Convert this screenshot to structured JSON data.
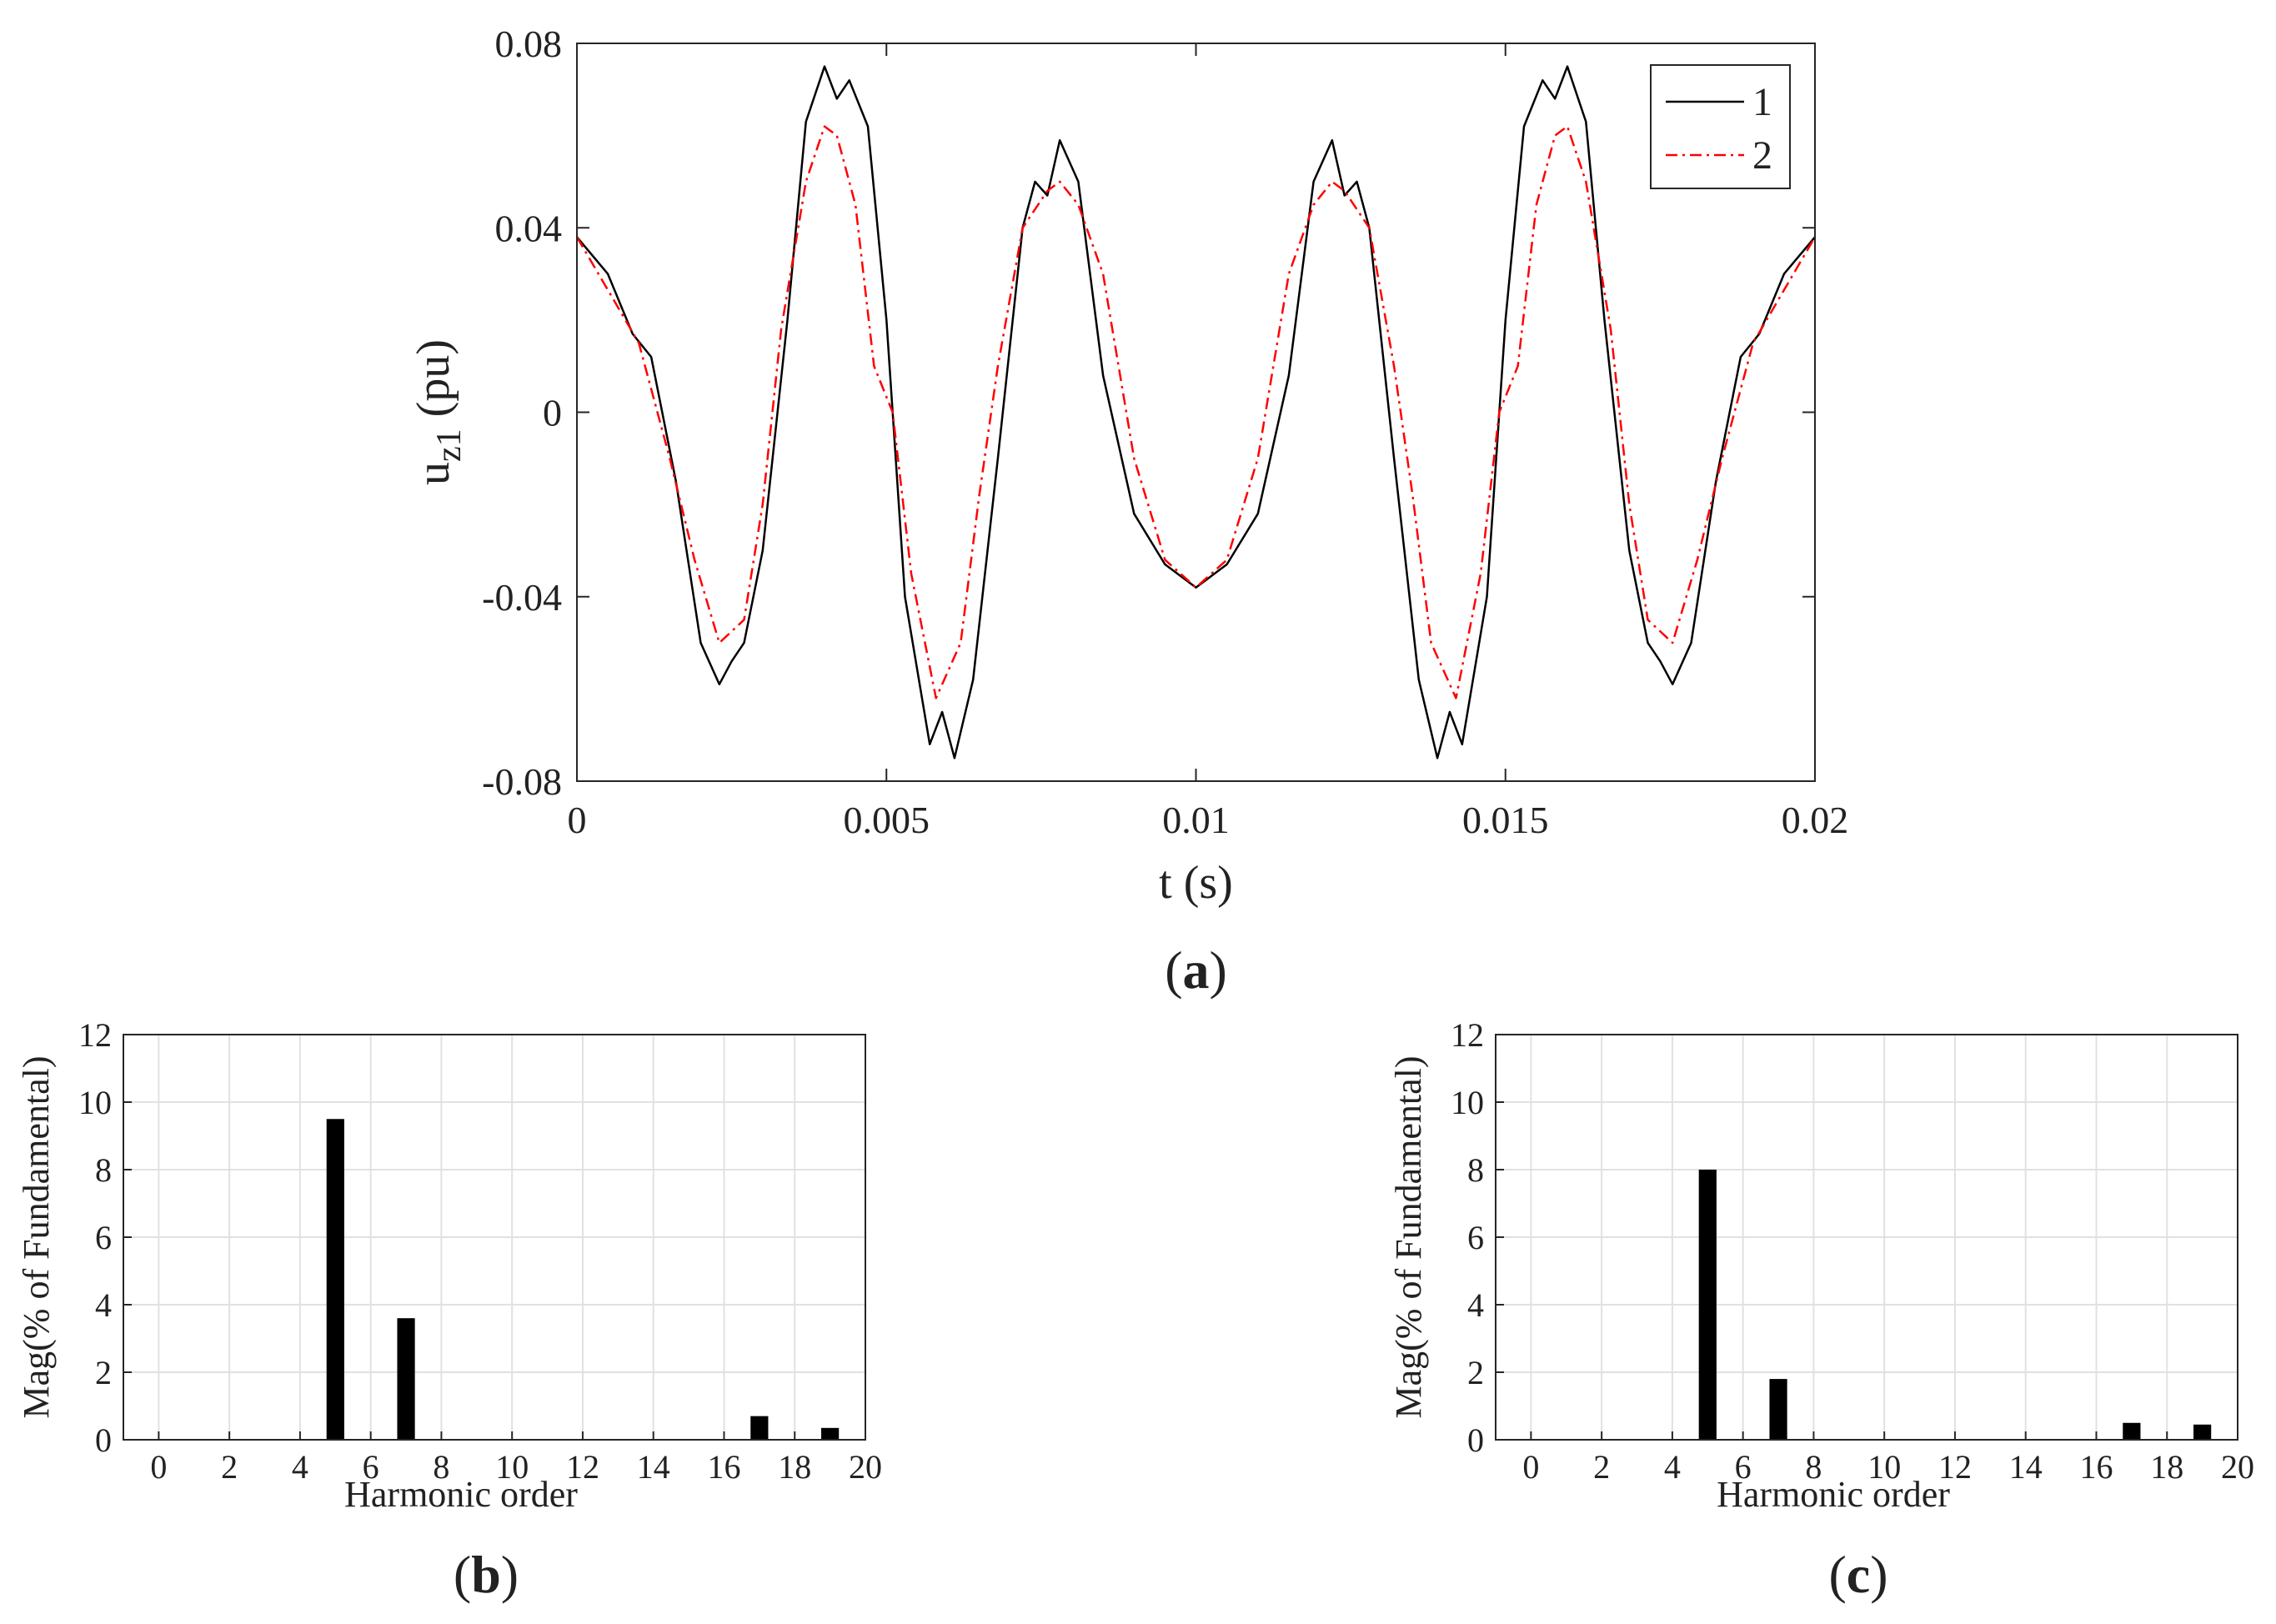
{
  "chart_data": [
    {
      "id": "a",
      "type": "line",
      "panel_label_open": "(",
      "panel_label": "a",
      "panel_label_close": ")",
      "xlabel": "t (s)",
      "ylabel_main": "u",
      "ylabel_sub": "z1",
      "ylabel_unit": " (pu)",
      "xlim": [
        0,
        0.02
      ],
      "ylim": [
        -0.08,
        0.08
      ],
      "x_ticks": [
        0,
        0.005,
        0.01,
        0.015,
        0.02
      ],
      "x_tick_labels": [
        "0",
        "0.005",
        "0.01",
        "0.015",
        "0.02"
      ],
      "y_ticks": [
        -0.08,
        -0.04,
        0,
        0.04,
        0.08
      ],
      "y_tick_labels": [
        "-0.08",
        "-0.04",
        "0",
        "0.04",
        "0.08"
      ],
      "grid": false,
      "legend_position": "top-right",
      "series": [
        {
          "name": "1",
          "color": "#000000",
          "style": "solid",
          "x": [
            0,
            0.0005,
            0.0009,
            0.0012,
            0.0016,
            0.002,
            0.0023,
            0.0025,
            0.0027,
            0.003,
            0.0034,
            0.0037,
            0.004,
            0.0042,
            0.0044,
            0.0047,
            0.005,
            0.0053,
            0.0057,
            0.0059,
            0.0061,
            0.0064,
            0.0068,
            0.0072,
            0.0074,
            0.0076,
            0.0078,
            0.0081,
            0.0085,
            0.009,
            0.0095,
            0.01,
            0.0105,
            0.011,
            0.0115,
            0.0119,
            0.0122,
            0.0124,
            0.0126,
            0.0128,
            0.0132,
            0.0136,
            0.0139,
            0.0141,
            0.0143,
            0.0147,
            0.015,
            0.0153,
            0.0156,
            0.0158,
            0.016,
            0.0163,
            0.0166,
            0.017,
            0.0173,
            0.0175,
            0.0177,
            0.018,
            0.0184,
            0.0188,
            0.0191,
            0.0195,
            0.02
          ],
          "y": [
            0.038,
            0.03,
            0.017,
            0.012,
            -0.015,
            -0.05,
            -0.059,
            -0.054,
            -0.05,
            -0.03,
            0.02,
            0.063,
            0.075,
            0.068,
            0.072,
            0.062,
            0.02,
            -0.04,
            -0.072,
            -0.065,
            -0.075,
            -0.058,
            -0.01,
            0.04,
            0.05,
            0.047,
            0.059,
            0.05,
            0.008,
            -0.022,
            -0.033,
            -0.038,
            -0.033,
            -0.022,
            0.008,
            0.05,
            0.059,
            0.047,
            0.05,
            0.04,
            -0.01,
            -0.058,
            -0.075,
            -0.065,
            -0.072,
            -0.04,
            0.02,
            0.062,
            0.072,
            0.068,
            0.075,
            0.063,
            0.02,
            -0.03,
            -0.05,
            -0.054,
            -0.059,
            -0.05,
            -0.015,
            0.012,
            0.017,
            0.03,
            0.038
          ]
        },
        {
          "name": "2",
          "color": "#ff0000",
          "style": "dashdot",
          "x": [
            0,
            0.001,
            0.0015,
            0.0019,
            0.0023,
            0.0027,
            0.003,
            0.0033,
            0.0037,
            0.004,
            0.0042,
            0.0045,
            0.0048,
            0.0051,
            0.0054,
            0.0058,
            0.0062,
            0.0065,
            0.0068,
            0.0072,
            0.0076,
            0.0078,
            0.0081,
            0.0085,
            0.009,
            0.0095,
            0.01,
            0.0105,
            0.011,
            0.0115,
            0.0119,
            0.0122,
            0.0124,
            0.0128,
            0.0132,
            0.0135,
            0.0138,
            0.0142,
            0.0146,
            0.0149,
            0.0152,
            0.0155,
            0.0158,
            0.016,
            0.0163,
            0.0167,
            0.017,
            0.0173,
            0.0177,
            0.0181,
            0.0185,
            0.019,
            0.02
          ],
          "y": [
            0.038,
            0.015,
            -0.01,
            -0.032,
            -0.05,
            -0.045,
            -0.02,
            0.018,
            0.05,
            0.062,
            0.06,
            0.045,
            0.01,
            0,
            -0.035,
            -0.062,
            -0.05,
            -0.018,
            0.01,
            0.04,
            0.048,
            0.05,
            0.045,
            0.03,
            -0.01,
            -0.032,
            -0.038,
            -0.032,
            -0.01,
            0.03,
            0.045,
            0.05,
            0.048,
            0.04,
            0.01,
            -0.018,
            -0.05,
            -0.062,
            -0.035,
            0,
            0.01,
            0.045,
            0.06,
            0.062,
            0.05,
            0.018,
            -0.02,
            -0.045,
            -0.05,
            -0.032,
            -0.01,
            0.015,
            0.038
          ]
        }
      ]
    },
    {
      "id": "b",
      "type": "bar",
      "panel_label_open": "(",
      "panel_label": "b",
      "panel_label_close": ")",
      "xlabel": "Harmonic order",
      "ylabel": "Mag(% of Fundamental)",
      "xlim": [
        -1,
        20
      ],
      "ylim": [
        0,
        12
      ],
      "x_ticks": [
        0,
        2,
        4,
        6,
        8,
        10,
        12,
        14,
        16,
        18,
        20
      ],
      "x_tick_labels": [
        "0",
        "2",
        "4",
        "6",
        "8",
        "10",
        "12",
        "14",
        "16",
        "18",
        "20"
      ],
      "y_ticks": [
        0,
        2,
        4,
        6,
        8,
        10,
        12
      ],
      "y_tick_labels": [
        "0",
        "2",
        "4",
        "6",
        "8",
        "10",
        "12"
      ],
      "grid": true,
      "bars": [
        {
          "order": 5,
          "value": 9.5
        },
        {
          "order": 7,
          "value": 3.6
        },
        {
          "order": 17,
          "value": 0.7
        },
        {
          "order": 19,
          "value": 0.35
        }
      ]
    },
    {
      "id": "c",
      "type": "bar",
      "panel_label_open": "(",
      "panel_label": "c",
      "panel_label_close": ")",
      "xlabel": "Harmonic order",
      "ylabel": "Mag(% of Fundamental)",
      "xlim": [
        -1,
        20
      ],
      "ylim": [
        0,
        12
      ],
      "x_ticks": [
        0,
        2,
        4,
        6,
        8,
        10,
        12,
        14,
        16,
        18,
        20
      ],
      "x_tick_labels": [
        "0",
        "2",
        "4",
        "6",
        "8",
        "10",
        "12",
        "14",
        "16",
        "18",
        "20"
      ],
      "y_ticks": [
        0,
        2,
        4,
        6,
        8,
        10,
        12
      ],
      "y_tick_labels": [
        "0",
        "2",
        "4",
        "6",
        "8",
        "10",
        "12"
      ],
      "grid": true,
      "bars": [
        {
          "order": 5,
          "value": 8.0
        },
        {
          "order": 7,
          "value": 1.8
        },
        {
          "order": 17,
          "value": 0.5
        },
        {
          "order": 19,
          "value": 0.45
        }
      ]
    }
  ]
}
